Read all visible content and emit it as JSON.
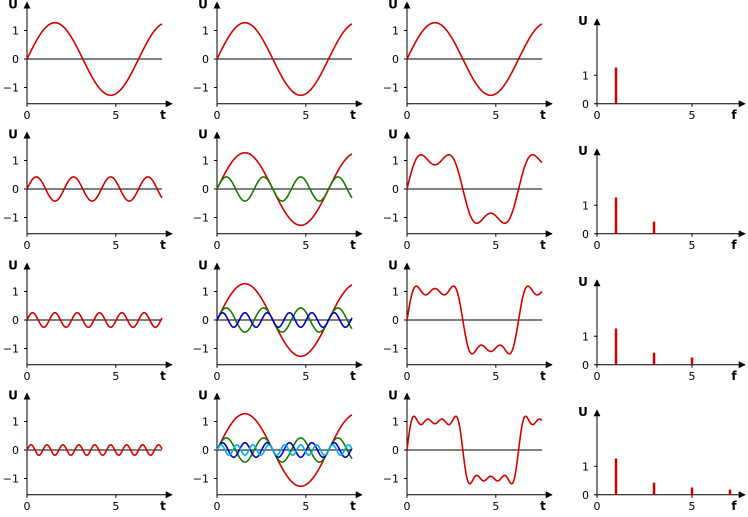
{
  "colors": {
    "h1": "#d40000",
    "h3": "#1a7a00",
    "h5": "#0000c8",
    "h7": "#00b0e0",
    "sum": "#d40000",
    "axis": "#000000"
  },
  "chart_data": [
    {
      "type": "line",
      "row": 0,
      "col": 0,
      "xlabel": "t",
      "ylabel": "U",
      "xlim": [
        0,
        7.6
      ],
      "ylim": [
        -1.5,
        1.5
      ],
      "xticks": [
        0,
        5
      ],
      "yticks": [
        -1,
        0,
        1
      ],
      "grid": false,
      "series": [
        {
          "kind": "sine",
          "harmonic": 1,
          "amplitude": 1.273,
          "color": "h1"
        }
      ]
    },
    {
      "type": "line",
      "row": 0,
      "col": 1,
      "xlabel": "t",
      "ylabel": "U",
      "xlim": [
        0,
        7.6
      ],
      "ylim": [
        -1.5,
        1.5
      ],
      "xticks": [
        0,
        5
      ],
      "yticks": [
        -1,
        0,
        1
      ],
      "grid": false,
      "series": [
        {
          "kind": "sine",
          "harmonic": 1,
          "amplitude": 1.273,
          "color": "h1"
        }
      ]
    },
    {
      "type": "line",
      "row": 0,
      "col": 2,
      "xlabel": "t",
      "ylabel": "U",
      "xlim": [
        0,
        7.6
      ],
      "ylim": [
        -1.5,
        1.5
      ],
      "xticks": [
        0,
        5
      ],
      "yticks": [
        -1,
        0,
        1
      ],
      "grid": false,
      "series": [
        {
          "kind": "partial_sum",
          "harmonics": [
            1
          ],
          "color": "sum"
        }
      ]
    },
    {
      "type": "bar",
      "row": 0,
      "col": 3,
      "xlabel": "f",
      "ylabel": "U",
      "xlim": [
        0,
        8
      ],
      "ylim": [
        0,
        1.5
      ],
      "xticks": [
        0,
        5
      ],
      "yticks": [
        0,
        1
      ],
      "grid": false,
      "x": [
        1
      ],
      "values": [
        1.273
      ],
      "color": "h1"
    },
    {
      "type": "line",
      "row": 1,
      "col": 0,
      "xlabel": "t",
      "ylabel": "U",
      "xlim": [
        0,
        7.6
      ],
      "ylim": [
        -1.5,
        1.5
      ],
      "xticks": [
        0,
        5
      ],
      "yticks": [
        -1,
        0,
        1
      ],
      "grid": false,
      "series": [
        {
          "kind": "sine",
          "harmonic": 3,
          "amplitude": 0.424,
          "color": "h1"
        }
      ]
    },
    {
      "type": "line",
      "row": 1,
      "col": 1,
      "xlabel": "t",
      "ylabel": "U",
      "xlim": [
        0,
        7.6
      ],
      "ylim": [
        -1.5,
        1.5
      ],
      "xticks": [
        0,
        5
      ],
      "yticks": [
        -1,
        0,
        1
      ],
      "grid": false,
      "series": [
        {
          "kind": "sine",
          "harmonic": 1,
          "amplitude": 1.273,
          "color": "h1"
        },
        {
          "kind": "sine",
          "harmonic": 3,
          "amplitude": 0.424,
          "color": "h3"
        }
      ]
    },
    {
      "type": "line",
      "row": 1,
      "col": 2,
      "xlabel": "t",
      "ylabel": "U",
      "xlim": [
        0,
        7.6
      ],
      "ylim": [
        -1.5,
        1.5
      ],
      "xticks": [
        0,
        5
      ],
      "yticks": [
        -1,
        0,
        1
      ],
      "grid": false,
      "series": [
        {
          "kind": "partial_sum",
          "harmonics": [
            1,
            3
          ],
          "color": "sum"
        }
      ]
    },
    {
      "type": "bar",
      "row": 1,
      "col": 3,
      "xlabel": "f",
      "ylabel": "U",
      "xlim": [
        0,
        8
      ],
      "ylim": [
        0,
        1.5
      ],
      "xticks": [
        0,
        5
      ],
      "yticks": [
        0,
        1
      ],
      "grid": false,
      "x": [
        1,
        3
      ],
      "values": [
        1.273,
        0.424
      ],
      "color": "h1"
    },
    {
      "type": "line",
      "row": 2,
      "col": 0,
      "xlabel": "t",
      "ylabel": "U",
      "xlim": [
        0,
        7.6
      ],
      "ylim": [
        -1.5,
        1.5
      ],
      "xticks": [
        0,
        5
      ],
      "yticks": [
        -1,
        0,
        1
      ],
      "grid": false,
      "series": [
        {
          "kind": "sine",
          "harmonic": 5,
          "amplitude": 0.255,
          "color": "h1"
        }
      ]
    },
    {
      "type": "line",
      "row": 2,
      "col": 1,
      "xlabel": "t",
      "ylabel": "U",
      "xlim": [
        0,
        7.6
      ],
      "ylim": [
        -1.5,
        1.5
      ],
      "xticks": [
        0,
        5
      ],
      "yticks": [
        -1,
        0,
        1
      ],
      "grid": false,
      "series": [
        {
          "kind": "sine",
          "harmonic": 1,
          "amplitude": 1.273,
          "color": "h1"
        },
        {
          "kind": "sine",
          "harmonic": 3,
          "amplitude": 0.424,
          "color": "h3"
        },
        {
          "kind": "sine",
          "harmonic": 5,
          "amplitude": 0.255,
          "color": "h5"
        }
      ]
    },
    {
      "type": "line",
      "row": 2,
      "col": 2,
      "xlabel": "t",
      "ylabel": "U",
      "xlim": [
        0,
        7.6
      ],
      "ylim": [
        -1.5,
        1.5
      ],
      "xticks": [
        0,
        5
      ],
      "yticks": [
        -1,
        0,
        1
      ],
      "grid": false,
      "series": [
        {
          "kind": "partial_sum",
          "harmonics": [
            1,
            3,
            5
          ],
          "color": "sum"
        }
      ]
    },
    {
      "type": "bar",
      "row": 2,
      "col": 3,
      "xlabel": "f",
      "ylabel": "U",
      "xlim": [
        0,
        8
      ],
      "ylim": [
        0,
        1.5
      ],
      "xticks": [
        0,
        5
      ],
      "yticks": [
        0,
        1
      ],
      "grid": false,
      "x": [
        1,
        3,
        5
      ],
      "values": [
        1.273,
        0.424,
        0.255
      ],
      "color": "h1"
    },
    {
      "type": "line",
      "row": 3,
      "col": 0,
      "xlabel": "t",
      "ylabel": "U",
      "xlim": [
        0,
        7.6
      ],
      "ylim": [
        -1.5,
        1.5
      ],
      "xticks": [
        0,
        5
      ],
      "yticks": [
        -1,
        0,
        1
      ],
      "grid": false,
      "series": [
        {
          "kind": "sine",
          "harmonic": 7,
          "amplitude": 0.182,
          "color": "h1"
        }
      ]
    },
    {
      "type": "line",
      "row": 3,
      "col": 1,
      "xlabel": "t",
      "ylabel": "U",
      "xlim": [
        0,
        7.6
      ],
      "ylim": [
        -1.5,
        1.5
      ],
      "xticks": [
        0,
        5
      ],
      "yticks": [
        -1,
        0,
        1
      ],
      "grid": false,
      "series": [
        {
          "kind": "sine",
          "harmonic": 1,
          "amplitude": 1.273,
          "color": "h1"
        },
        {
          "kind": "sine",
          "harmonic": 3,
          "amplitude": 0.424,
          "color": "h3"
        },
        {
          "kind": "sine",
          "harmonic": 5,
          "amplitude": 0.255,
          "color": "h5"
        },
        {
          "kind": "sine",
          "harmonic": 7,
          "amplitude": 0.182,
          "color": "h7"
        }
      ]
    },
    {
      "type": "line",
      "row": 3,
      "col": 2,
      "xlabel": "t",
      "ylabel": "U",
      "xlim": [
        0,
        7.6
      ],
      "ylim": [
        -1.5,
        1.5
      ],
      "xticks": [
        0,
        5
      ],
      "yticks": [
        -1,
        0,
        1
      ],
      "grid": false,
      "series": [
        {
          "kind": "partial_sum",
          "harmonics": [
            1,
            3,
            5,
            7
          ],
          "color": "sum"
        }
      ]
    },
    {
      "type": "bar",
      "row": 3,
      "col": 3,
      "xlabel": "f",
      "ylabel": "U",
      "xlim": [
        0,
        8
      ],
      "ylim": [
        0,
        1.5
      ],
      "xticks": [
        0,
        5
      ],
      "yticks": [
        0,
        1
      ],
      "grid": false,
      "x": [
        1,
        3,
        5,
        7
      ],
      "values": [
        1.273,
        0.424,
        0.255,
        0.182
      ],
      "color": "h1"
    }
  ]
}
